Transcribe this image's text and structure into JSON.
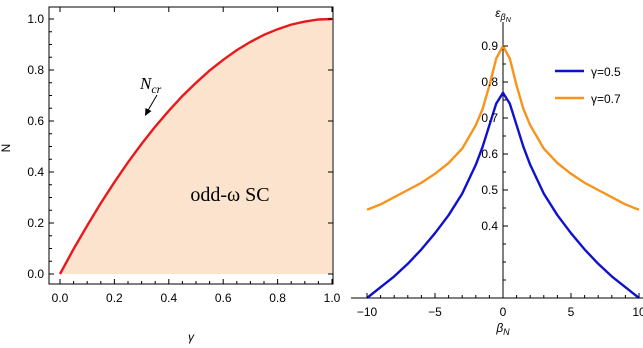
{
  "chart_data": [
    {
      "type": "area",
      "xlabel": "γ",
      "ylabel": "N",
      "xlim": [
        0.0,
        1.0
      ],
      "ylim": [
        0.0,
        1.0
      ],
      "x_ticks": [
        "0.0",
        "0.2",
        "0.4",
        "0.6",
        "0.8",
        "1.0"
      ],
      "y_ticks": [
        "0.0",
        "0.2",
        "0.4",
        "0.6",
        "0.8",
        "1.0"
      ],
      "region_label": "odd-ω SC",
      "annotation": "N_cr",
      "annotation_text": {
        "main": "N",
        "sub": "cr"
      },
      "series": [
        {
          "x": [
            0.0,
            0.05,
            0.1,
            0.15,
            0.2,
            0.25,
            0.3,
            0.35,
            0.4,
            0.45,
            0.5,
            0.55,
            0.6,
            0.65,
            0.7,
            0.75,
            0.8,
            0.85,
            0.9,
            0.95,
            1.0
          ],
          "y": [
            0.0,
            0.098,
            0.19,
            0.278,
            0.36,
            0.438,
            0.51,
            0.578,
            0.64,
            0.698,
            0.75,
            0.798,
            0.84,
            0.878,
            0.91,
            0.938,
            0.96,
            0.978,
            0.99,
            0.998,
            1.0
          ],
          "color": "#e8191c",
          "fill": "#fbe3cd"
        }
      ]
    },
    {
      "type": "line",
      "xlabel": "β_N",
      "ylabel": "ε_βN",
      "xlabel_text": {
        "main": "β",
        "sub": "N"
      },
      "ylabel_text": {
        "main": "ε",
        "sub": "β",
        "subsub": "N"
      },
      "xlim": [
        -10,
        10
      ],
      "ylim": [
        0.2,
        0.95
      ],
      "x_ticks": [
        "-10",
        "-5",
        "0",
        "5",
        "10"
      ],
      "y_ticks": [
        "0.4",
        "0.5",
        "0.6",
        "0.7",
        "0.8",
        "0.9"
      ],
      "series": [
        {
          "name": "γ=0.5",
          "color": "#1010d0",
          "x": [
            -10,
            -9,
            -8,
            -7,
            -6,
            -5,
            -4,
            -3,
            -2,
            -1.5,
            -1,
            -0.5,
            0,
            0.5,
            1,
            1.5,
            2,
            3,
            4,
            5,
            6,
            7,
            8,
            9,
            10
          ],
          "y": [
            0.2,
            0.23,
            0.26,
            0.295,
            0.335,
            0.38,
            0.43,
            0.49,
            0.57,
            0.62,
            0.68,
            0.74,
            0.77,
            0.74,
            0.68,
            0.62,
            0.57,
            0.49,
            0.43,
            0.38,
            0.335,
            0.295,
            0.26,
            0.23,
            0.2
          ]
        },
        {
          "name": "γ=0.7",
          "color": "#f7941d",
          "x": [
            -10,
            -9,
            -8,
            -7,
            -6,
            -5,
            -4,
            -3,
            -2,
            -1.5,
            -1,
            -0.5,
            0,
            0.5,
            1,
            1.5,
            2,
            3,
            4,
            5,
            6,
            7,
            8,
            9,
            10
          ],
          "y": [
            0.445,
            0.46,
            0.48,
            0.5,
            0.52,
            0.545,
            0.575,
            0.615,
            0.68,
            0.725,
            0.79,
            0.865,
            0.9,
            0.865,
            0.79,
            0.725,
            0.68,
            0.615,
            0.575,
            0.545,
            0.52,
            0.5,
            0.48,
            0.46,
            0.445
          ]
        }
      ]
    }
  ]
}
